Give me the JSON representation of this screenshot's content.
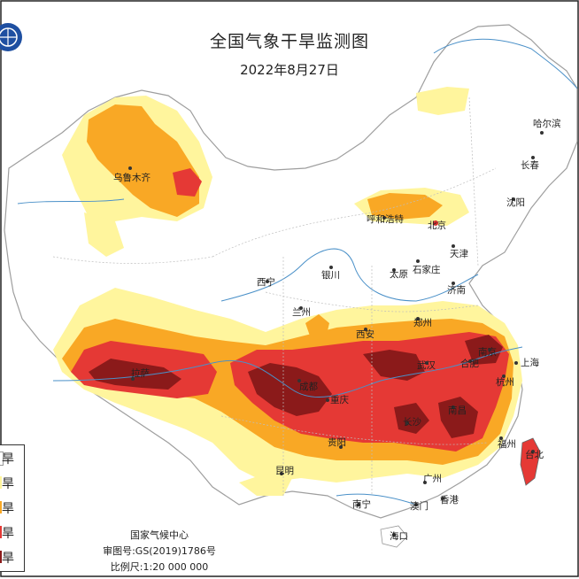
{
  "title": "全国气象干旱监测图",
  "date": "2022年8月27日",
  "footer": {
    "agency": "国家气候中心",
    "review_no": "审图号:GS(2019)1786号",
    "scale": "比例尺:1:20 000 000"
  },
  "legend": [
    {
      "label": "无旱",
      "color": "#ffffff"
    },
    {
      "label": "轻旱",
      "color": "#fff59d"
    },
    {
      "label": "中旱",
      "color": "#f9a825"
    },
    {
      "label": "重旱",
      "color": "#e53935"
    },
    {
      "label": "特旱",
      "color": "#8b1a1a"
    }
  ],
  "legend_visible": [
    "旱",
    "旱",
    "旱",
    "旱",
    "旱"
  ],
  "cities": {
    "harbin": "哈尔滨",
    "changchun": "长春",
    "shenyang": "沈阳",
    "urumqi": "乌鲁木齐",
    "hohhot": "呼和浩特",
    "beijing": "北京",
    "tianjin": "天津",
    "shijiazhuang": "石家庄",
    "taiyuan": "太原",
    "jinan": "济南",
    "yinchuan": "银川",
    "xining": "西宁",
    "lanzhou": "兰州",
    "xian": "西安",
    "zhengzhou": "郑州",
    "lhasa": "拉萨",
    "chengdu": "成都",
    "chongqing": "重庆",
    "wuhan": "武汉",
    "hefei": "合肥",
    "nanjing": "南京",
    "shanghai": "上海",
    "hangzhou": "杭州",
    "changsha": "长沙",
    "nanchang": "南昌",
    "fuzhou": "福州",
    "taipei": "台北",
    "guiyang": "贵阳",
    "kunming": "昆明",
    "nanning": "南宁",
    "guangzhou": "广州",
    "macau": "澳门",
    "hongkong": "香港",
    "haikou": "海口"
  },
  "colors": {
    "none": "#ffffff",
    "light": "#fff59d",
    "moderate": "#f9a825",
    "severe": "#e53935",
    "extreme": "#8b1a1a",
    "border": "#bdbdbd",
    "river": "#4a90c8",
    "frame": "#222222"
  }
}
